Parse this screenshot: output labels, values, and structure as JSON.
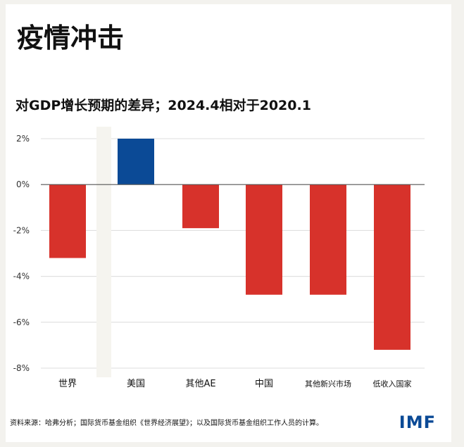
{
  "header": {
    "title": "疫情冲击",
    "subtitle": "对GDP增长预期的差异；2024.4相对于2020.1"
  },
  "chart_data": {
    "type": "bar",
    "categories": [
      "世界",
      "美国",
      "其他AE",
      "中国",
      "其他新兴市场",
      "低收入国家"
    ],
    "values": [
      -3.2,
      2.0,
      -1.9,
      -4.8,
      -4.8,
      -7.2
    ],
    "bar_colors": [
      "#d7322b",
      "#0b4a96",
      "#d7322b",
      "#d7322b",
      "#d7322b",
      "#d7322b"
    ],
    "ylim": [
      -8,
      2
    ],
    "yticks": [
      2,
      0,
      -2,
      -4,
      -6,
      -8
    ],
    "ytick_labels": [
      "2%",
      "0%",
      "-2%",
      "-4%",
      "-6%",
      "-8%"
    ],
    "grid": true,
    "legend": "none"
  },
  "footer": {
    "source": "资料来源：哈弗分析；国际货币基金组织《世界经济展望》；以及国际货币基金组织工作人员的计算。",
    "logo": "IMF"
  },
  "colors": {
    "negative": "#d7322b",
    "positive": "#0b4a96",
    "brand": "#0b4a96"
  }
}
